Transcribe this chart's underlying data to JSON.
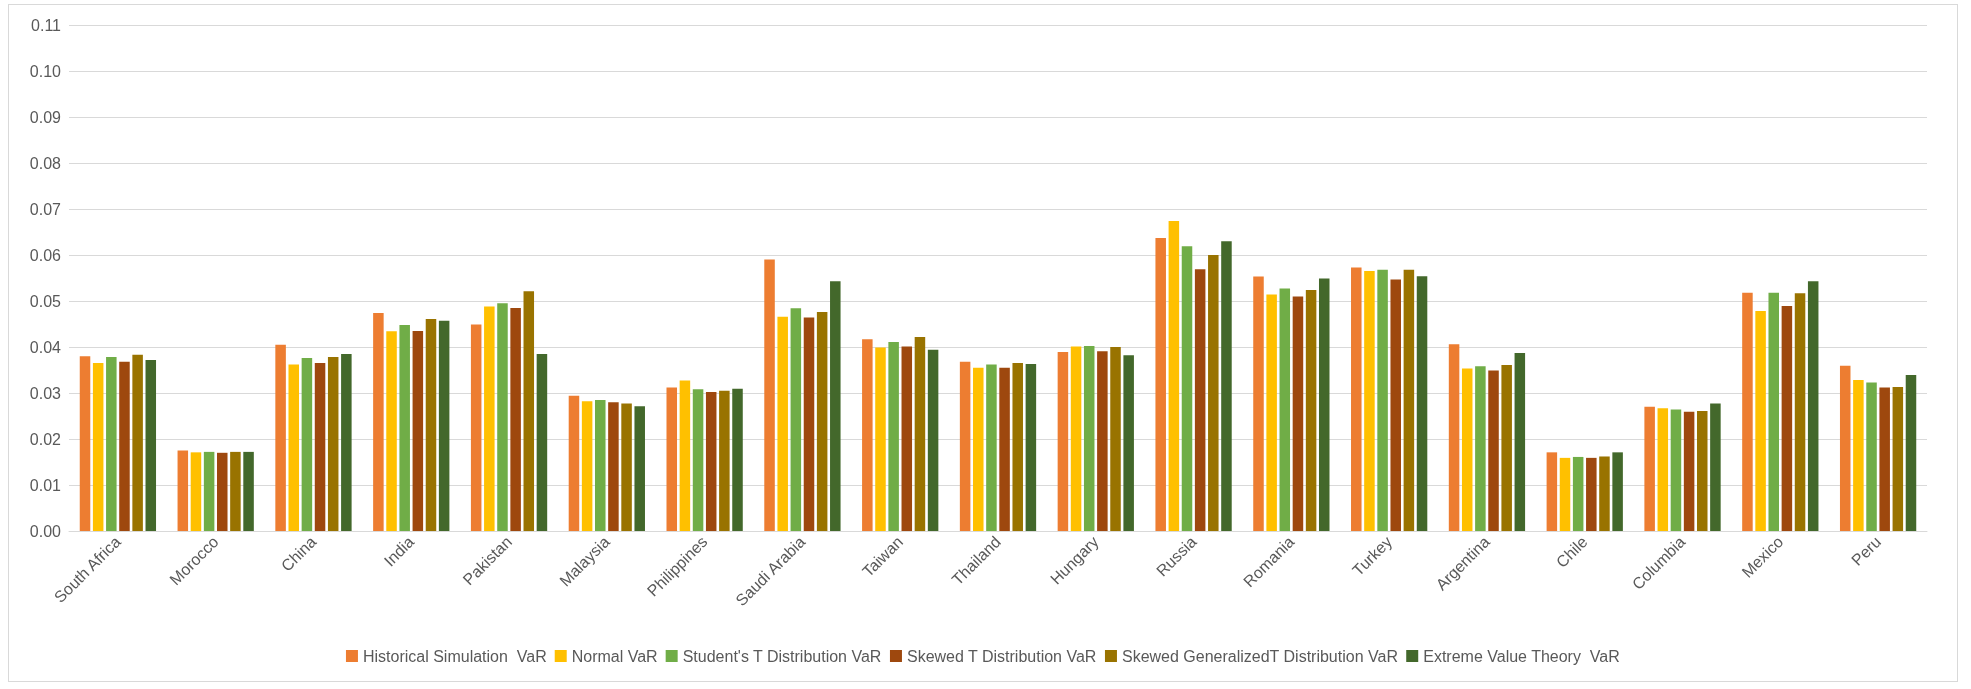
{
  "chart_data": {
    "type": "bar",
    "categories": [
      "South Africa",
      "Morocco",
      "China",
      "India",
      "Pakistan",
      "Malaysia",
      "Philippines",
      "Saudi Arabia",
      "Taiwan",
      "Thailand",
      "Hungary",
      "Russia",
      "Romania",
      "Turkey",
      "Argentina",
      "Chile",
      "Columbia",
      "Mexico",
      "Peru"
    ],
    "series": [
      {
        "name": "Historical Simulation  VaR",
        "color": "#ed7d31",
        "values": [
          0.038,
          0.0175,
          0.0405,
          0.0474,
          0.0449,
          0.0294,
          0.0312,
          0.059,
          0.0417,
          0.0368,
          0.0389,
          0.0637,
          0.0553,
          0.0573,
          0.0406,
          0.0171,
          0.027,
          0.0518,
          0.0359
        ]
      },
      {
        "name": "Normal VaR",
        "color": "#ffc000",
        "values": [
          0.0365,
          0.0171,
          0.0362,
          0.0434,
          0.0488,
          0.0282,
          0.0327,
          0.0466,
          0.0399,
          0.0355,
          0.0401,
          0.0674,
          0.0514,
          0.0565,
          0.0353,
          0.0159,
          0.0267,
          0.0478,
          0.0328
        ]
      },
      {
        "name": "Student's T Distribution VaR",
        "color": "#70ad47",
        "values": [
          0.0378,
          0.0172,
          0.0376,
          0.0448,
          0.0495,
          0.0285,
          0.0308,
          0.0484,
          0.0411,
          0.0362,
          0.0402,
          0.0619,
          0.0527,
          0.0568,
          0.0358,
          0.0161,
          0.0264,
          0.0518,
          0.0323
        ]
      },
      {
        "name": "Skewed T Distribution VaR",
        "color": "#9e480e",
        "values": [
          0.0368,
          0.017,
          0.0365,
          0.0435,
          0.0485,
          0.028,
          0.0302,
          0.0464,
          0.0401,
          0.0355,
          0.0391,
          0.0569,
          0.051,
          0.0547,
          0.0349,
          0.0159,
          0.0259,
          0.0489,
          0.0312
        ]
      },
      {
        "name": "Skewed GeneralizedT Distribution VaR",
        "color": "#997300",
        "values": [
          0.0383,
          0.0172,
          0.0378,
          0.0461,
          0.0521,
          0.0277,
          0.0305,
          0.0476,
          0.0422,
          0.0365,
          0.04,
          0.06,
          0.0524,
          0.0568,
          0.0361,
          0.0162,
          0.0261,
          0.0517,
          0.0313
        ]
      },
      {
        "name": "Extreme Value Theory  VaR",
        "color": "#43682b",
        "values": [
          0.0372,
          0.0172,
          0.0385,
          0.0457,
          0.0385,
          0.0271,
          0.0309,
          0.0543,
          0.0394,
          0.0363,
          0.0382,
          0.063,
          0.0549,
          0.0554,
          0.0387,
          0.0171,
          0.0277,
          0.0543,
          0.0339
        ]
      }
    ],
    "ylim": [
      0,
      0.11
    ],
    "yticks": [
      {
        "value": 0,
        "label": "0.00"
      },
      0.01,
      0.02,
      0.03,
      0.04,
      0.05,
      0.06,
      0.07,
      0.08,
      0.09,
      {
        "value": 0.1,
        "label": "0.10"
      },
      0.11
    ],
    "grid": "y",
    "legend": "bottom"
  }
}
